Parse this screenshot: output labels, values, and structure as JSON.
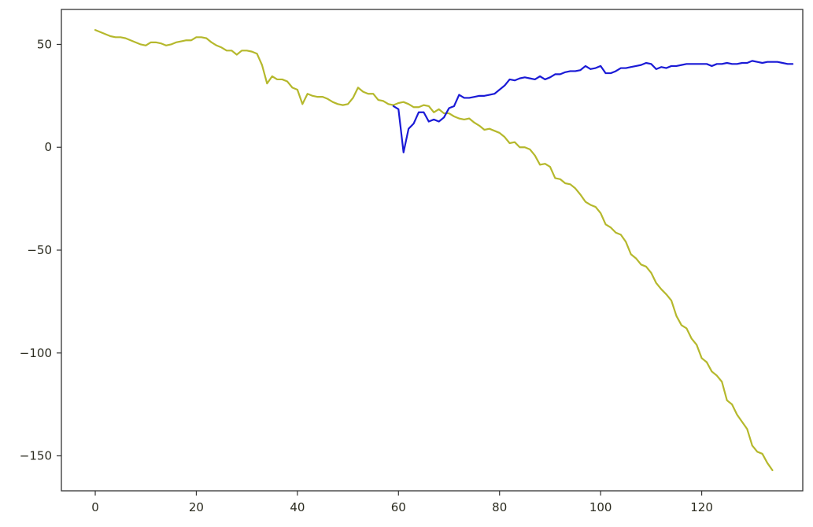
{
  "chart_data": {
    "type": "line",
    "title": "",
    "xlabel": "",
    "ylabel": "",
    "xlim": [
      -6.7,
      140.0
    ],
    "ylim": [
      -167.0,
      67.0
    ],
    "grid": false,
    "legend": "none",
    "x_ticks": [
      0,
      20,
      40,
      60,
      80,
      100,
      120
    ],
    "x_tick_labels": [
      "0",
      "20",
      "40",
      "60",
      "80",
      "100",
      "120"
    ],
    "y_ticks": [
      50,
      0,
      -50,
      -100,
      -150
    ],
    "y_tick_labels": [
      "50",
      "0",
      "−50",
      "−100",
      "−150"
    ],
    "series": [
      {
        "color": "#b5b82c",
        "x_start": 0,
        "values": [
          57,
          56,
          55,
          54,
          53.5,
          53.5,
          53,
          52,
          51,
          50,
          49.5,
          51,
          51,
          50.5,
          49.5,
          50,
          51,
          51.5,
          52,
          52,
          53.5,
          53.5,
          53,
          51,
          49.5,
          48.5,
          47,
          47,
          45,
          47,
          47,
          46.5,
          45.5,
          40,
          31,
          34.5,
          33,
          33,
          32,
          29,
          28,
          21,
          26,
          25,
          24.5,
          24.5,
          23.5,
          22,
          21,
          20.5,
          21,
          24,
          29,
          27,
          26,
          26,
          23,
          22.5,
          21,
          20.5,
          21.5,
          22,
          21,
          19.5,
          19.5,
          20.5,
          20,
          17,
          18.5,
          16.5,
          16.5,
          15,
          14,
          13.5,
          14,
          12,
          10.5,
          8.5,
          9,
          8,
          7,
          5,
          2,
          2.5,
          0,
          0,
          -1,
          -4,
          -8.5,
          -8,
          -9.5,
          -15,
          -15.5,
          -17.5,
          -18,
          -20,
          -23,
          -26.5,
          -28,
          -29,
          -32,
          -37.5,
          -39,
          -41.5,
          -42.5,
          -46,
          -52,
          -54,
          -57,
          -58,
          -61,
          -66,
          -69,
          -71.5,
          -74.5,
          -82,
          -86.5,
          -88,
          -93,
          -96,
          -102.5,
          -104.5,
          -109,
          -111,
          -114,
          -123,
          -125,
          -130,
          -133.5,
          -137,
          -145,
          -148,
          -149,
          -153.5,
          -157
        ]
      },
      {
        "color": "#1a1ad6",
        "x_start": 59,
        "values": [
          20,
          18.5,
          -2.5,
          9,
          11.5,
          17,
          17,
          12.5,
          13.5,
          12.5,
          14.5,
          19,
          20,
          25.5,
          24,
          24,
          24.5,
          25,
          25,
          25.5,
          26,
          28,
          30,
          33,
          32.5,
          33.5,
          34,
          33.5,
          33,
          34.5,
          33,
          34,
          35.5,
          35.5,
          36.5,
          37,
          37,
          37.5,
          39.5,
          38,
          38.5,
          39.5,
          36,
          36,
          37,
          38.5,
          38.5,
          39,
          39.5,
          40,
          41,
          40.5,
          38,
          39,
          38.5,
          39.5,
          39.5,
          40,
          40.5,
          40.5,
          40.5,
          40.5,
          40.5,
          39.5,
          40.5,
          40.5,
          41,
          40.5,
          40.5,
          41,
          41,
          42,
          41.5,
          41,
          41.5,
          41.5,
          41.5,
          41,
          40.5,
          40.5
        ]
      }
    ]
  }
}
